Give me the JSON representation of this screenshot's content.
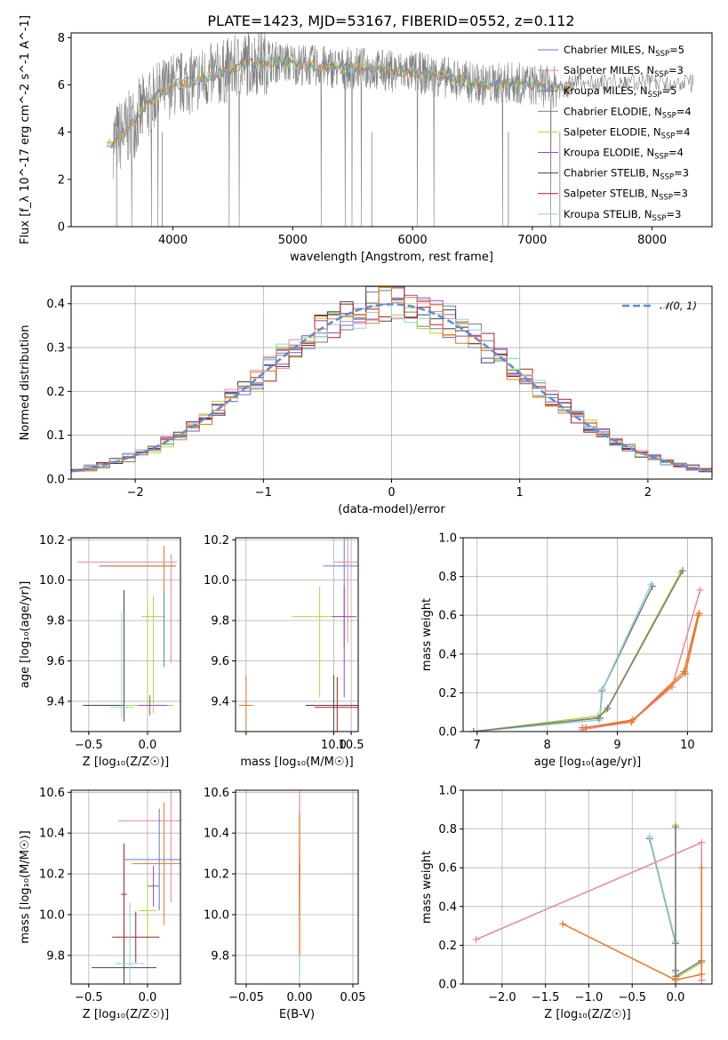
{
  "figure": {
    "title": "PLATE=1423, MJD=53167, FIBERID=0552, z=0.112"
  },
  "colors": {
    "series": [
      "#5b7fc9",
      "#e8889a",
      "#7a7a7a",
      "#7c7c7c",
      "#b5d23a",
      "#9a4ab5",
      "#444444",
      "#b31e1e",
      "#8fd3dc"
    ],
    "normal_curve": "#5b8fd6",
    "orange": "#e8782a",
    "grey": "#808080",
    "grid": "#b0b0b0"
  },
  "chart_data": [
    {
      "id": "spectrum",
      "type": "line",
      "title": "PLATE=1423, MJD=53167, FIBERID=0552, z=0.112",
      "xlabel": "wavelength [Angstrom, rest frame]",
      "ylabel": "Flux [f_λ 10^-17 erg cm^-2 s^-1 A^-1]",
      "xlim": [
        3150,
        8500
      ],
      "ylim": [
        0,
        8.2
      ],
      "xticks": [
        4000,
        5000,
        6000,
        7000,
        8000
      ],
      "yticks": [
        0,
        2,
        4,
        6,
        8
      ],
      "grid": false,
      "legend_position": "right",
      "legend": [
        {
          "text": "Chabrier MILES, N",
          "sub": "SSP",
          "tail": "=5",
          "color": "#5b7fc9"
        },
        {
          "text": "Salpeter MILES, N",
          "sub": "SSP",
          "tail": "=3",
          "color": "#e8889a"
        },
        {
          "text": "Kroupa MILES, N",
          "sub": "SSP",
          "tail": "=5",
          "color": "#7a7a7a"
        },
        {
          "text": "Chabrier ELODIE, N",
          "sub": "SSP",
          "tail": "=4",
          "color": "#7c7c7c"
        },
        {
          "text": "Salpeter ELODIE, N",
          "sub": "SSP",
          "tail": "=4",
          "color": "#b5d23a"
        },
        {
          "text": "Kroupa ELODIE, N",
          "sub": "SSP",
          "tail": "=4",
          "color": "#9a4ab5"
        },
        {
          "text": "Chabrier STELIB, N",
          "sub": "SSP",
          "tail": "=3",
          "color": "#444444"
        },
        {
          "text": "Salpeter STELIB, N",
          "sub": "SSP",
          "tail": "=3",
          "color": "#b31e1e"
        },
        {
          "text": "Kroupa STELIB, N",
          "sub": "SSP",
          "tail": "=3",
          "color": "#8fd3dc"
        }
      ],
      "continuum": {
        "x": [
          3500,
          3600,
          3700,
          3800,
          3900,
          4000,
          4200,
          4400,
          4600,
          4800,
          5000,
          5200,
          5400,
          5600,
          5800,
          6000,
          6200,
          6400,
          6600,
          6800,
          7000,
          7200,
          7300
        ],
        "y": [
          3.6,
          4.0,
          4.6,
          5.2,
          5.7,
          6.0,
          6.2,
          6.5,
          6.9,
          7.0,
          6.9,
          6.8,
          6.7,
          6.7,
          6.6,
          6.55,
          6.4,
          6.2,
          6.0,
          6.1,
          6.0,
          5.9,
          5.9
        ]
      }
    },
    {
      "id": "residuals",
      "type": "line",
      "xlabel": "(data-model)/error",
      "ylabel": "Normed distribution",
      "xlim": [
        -2.5,
        2.5
      ],
      "ylim": [
        0,
        0.44
      ],
      "xticks": [
        -2,
        -1,
        0,
        1,
        2
      ],
      "xtick_labels": [
        "−2",
        "−1",
        "0",
        "1",
        "2"
      ],
      "yticks": [
        0.0,
        0.1,
        0.2,
        0.3,
        0.4
      ],
      "grid": true,
      "legend": [
        {
          "text": "𝒩(0, 1)",
          "color": "#5b8fd6",
          "style": "dashed"
        }
      ],
      "legend_position": "top-right",
      "bin_width": 0.1
    },
    {
      "id": "age-vs-Z",
      "type": "scatter",
      "xlabel": "Z [log₁₀(Z/Z☉)]",
      "ylabel": "age  [log₁₀(age/yr)]",
      "xlim": [
        -0.65,
        0.28
      ],
      "ylim": [
        9.25,
        10.21
      ],
      "xticks": [
        -0.5,
        0.0
      ],
      "xtick_labels": [
        "−0.5",
        "0.0"
      ],
      "yticks": [
        9.4,
        9.6,
        9.8,
        10.0,
        10.2
      ],
      "grid": true,
      "points": [
        {
          "x": -0.2,
          "y": 9.38,
          "xerr": [
            0.35,
            0.4
          ],
          "yerr": [
            0.08,
            0.57
          ],
          "c": 6
        },
        {
          "x": 0.0,
          "y": 9.38,
          "xerr": [
            0.2,
            0.22
          ],
          "yerr": [
            0.03,
            0.52
          ],
          "c": 4
        },
        {
          "x": 0.02,
          "y": 9.38,
          "xerr": [
            0.1,
            0.15
          ],
          "yerr": [
            0.05,
            0.05
          ],
          "c": 5
        },
        {
          "x": -0.22,
          "y": 9.37,
          "xerr": [
            0.1,
            0.1
          ],
          "yerr": [
            0.05,
            0.47
          ],
          "c": 8
        },
        {
          "x": 0.05,
          "y": 9.82,
          "xerr": [
            0.1,
            0.1
          ],
          "yerr": [
            0.48,
            0.1
          ],
          "c": 4
        },
        {
          "x": 0.14,
          "y": 10.07,
          "xerr": [
            0.55,
            0.1
          ],
          "yerr": [
            0.5,
            0.1
          ],
          "c": 0
        },
        {
          "x": 0.2,
          "y": 10.09,
          "xerr": [
            0.8,
            0.05
          ],
          "yerr": [
            0.5,
            0.04
          ],
          "c": 1
        },
        {
          "x": 0.14,
          "y": 10.07,
          "xerr": [
            0.5,
            0.1
          ],
          "yerr": [
            0.12,
            0.1
          ],
          "c": 9
        }
      ]
    },
    {
      "id": "age-vs-mass",
      "type": "scatter",
      "xlabel": "mass [log₁₀(M/M☉)]",
      "xlim": [
        7.2,
        10.7
      ],
      "ylim": [
        9.25,
        10.21
      ],
      "xticks": [
        7.5,
        10.0,
        10.5
      ],
      "xtick_labels": [
        "",
        "10.0",
        "10.5"
      ],
      "yticks": [
        9.4,
        9.6,
        9.8,
        10.0,
        10.2
      ],
      "grid": true
    },
    {
      "id": "weight-vs-age",
      "type": "line",
      "xlabel": "age  [log₁₀(age/yr)]",
      "ylabel": "mass weight",
      "xlim": [
        6.8,
        10.35
      ],
      "ylim": [
        0,
        1.0
      ],
      "xticks": [
        7,
        8,
        9,
        10
      ],
      "yticks": [
        0.0,
        0.2,
        0.4,
        0.6,
        0.8,
        1.0
      ],
      "grid": true,
      "series": [
        {
          "c": 2,
          "x": [
            6.95,
            8.75,
            8.78,
            9.5
          ],
          "y": [
            0.0,
            0.07,
            0.21,
            0.75
          ]
        },
        {
          "c": 8,
          "x": [
            6.95,
            8.75,
            8.79,
            9.48
          ],
          "y": [
            0.0,
            0.06,
            0.22,
            0.76
          ]
        },
        {
          "c": 4,
          "x": [
            6.95,
            8.72,
            8.84,
            9.9
          ],
          "y": [
            0.0,
            0.08,
            0.11,
            0.82
          ]
        },
        {
          "c": 3,
          "x": [
            6.95,
            8.73,
            8.86,
            9.93
          ],
          "y": [
            0.0,
            0.07,
            0.12,
            0.83
          ]
        },
        {
          "c": 1,
          "x": [
            8.5,
            9.2,
            9.78,
            10.18
          ],
          "y": [
            0.01,
            0.05,
            0.23,
            0.73
          ]
        },
        {
          "c": 10,
          "x": [
            8.5,
            9.2,
            9.95,
            10.15
          ],
          "y": [
            0.02,
            0.05,
            0.31,
            0.6
          ]
        },
        {
          "c": 10,
          "x": [
            8.55,
            9.22,
            9.97,
            10.17
          ],
          "y": [
            0.02,
            0.06,
            0.3,
            0.61
          ]
        }
      ]
    },
    {
      "id": "mass-vs-Z",
      "type": "scatter",
      "xlabel": "Z [log₁₀(Z/Z☉)]",
      "ylabel": "mass [log₁₀(M/M☉)]",
      "xlim": [
        -0.65,
        0.28
      ],
      "ylim": [
        9.66,
        10.61
      ],
      "xticks": [
        -0.5,
        0.0
      ],
      "xtick_labels": [
        "−0.5",
        "0.0"
      ],
      "yticks": [
        9.8,
        10.0,
        10.2,
        10.4,
        10.6
      ],
      "grid": true
    },
    {
      "id": "mass-vs-ebv",
      "type": "scatter",
      "xlabel": "E(B-V)",
      "xlim": [
        -0.06,
        0.055
      ],
      "ylim": [
        9.66,
        10.61
      ],
      "xticks": [
        -0.05,
        0.0,
        0.05
      ],
      "xtick_labels": [
        "−0.05",
        "0.00",
        "0.05"
      ],
      "yticks": [
        9.8,
        10.0,
        10.2,
        10.4,
        10.6
      ],
      "grid": true
    },
    {
      "id": "weight-vs-Z",
      "type": "line",
      "xlabel": "Z [log₁₀(Z/Z☉)]",
      "ylabel": "mass weight",
      "xlim": [
        -2.45,
        0.42
      ],
      "ylim": [
        0,
        1.0
      ],
      "xticks": [
        -2.0,
        -1.5,
        -1.0,
        -0.5,
        0.0
      ],
      "xtick_labels": [
        "−2.0",
        "−1.5",
        "−1.0",
        "−0.5",
        "0.0"
      ],
      "yticks": [
        0.0,
        0.2,
        0.4,
        0.6,
        0.8,
        1.0
      ],
      "grid": true,
      "series": [
        {
          "c": 2,
          "x": [
            -0.3,
            0.0,
            0.0,
            0.0
          ],
          "y": [
            0.75,
            0.21,
            0.07,
            0.0
          ]
        },
        {
          "c": 8,
          "x": [
            -0.3,
            0.0,
            0.0
          ],
          "y": [
            0.76,
            0.22,
            0.06
          ]
        },
        {
          "c": 4,
          "x": [
            0.0,
            0.0,
            0.3,
            0.3
          ],
          "y": [
            0.82,
            0.03,
            0.11,
            0.11
          ]
        },
        {
          "c": 3,
          "x": [
            0.0,
            0.0,
            0.3
          ],
          "y": [
            0.81,
            0.04,
            0.12
          ]
        },
        {
          "c": 1,
          "x": [
            -2.3,
            0.3,
            0.3,
            0.3
          ],
          "y": [
            0.23,
            0.73,
            0.02,
            0.02
          ]
        },
        {
          "c": 10,
          "x": [
            -1.3,
            0.0,
            0.3,
            0.3
          ],
          "y": [
            0.31,
            0.02,
            0.05,
            0.6
          ]
        }
      ]
    }
  ]
}
